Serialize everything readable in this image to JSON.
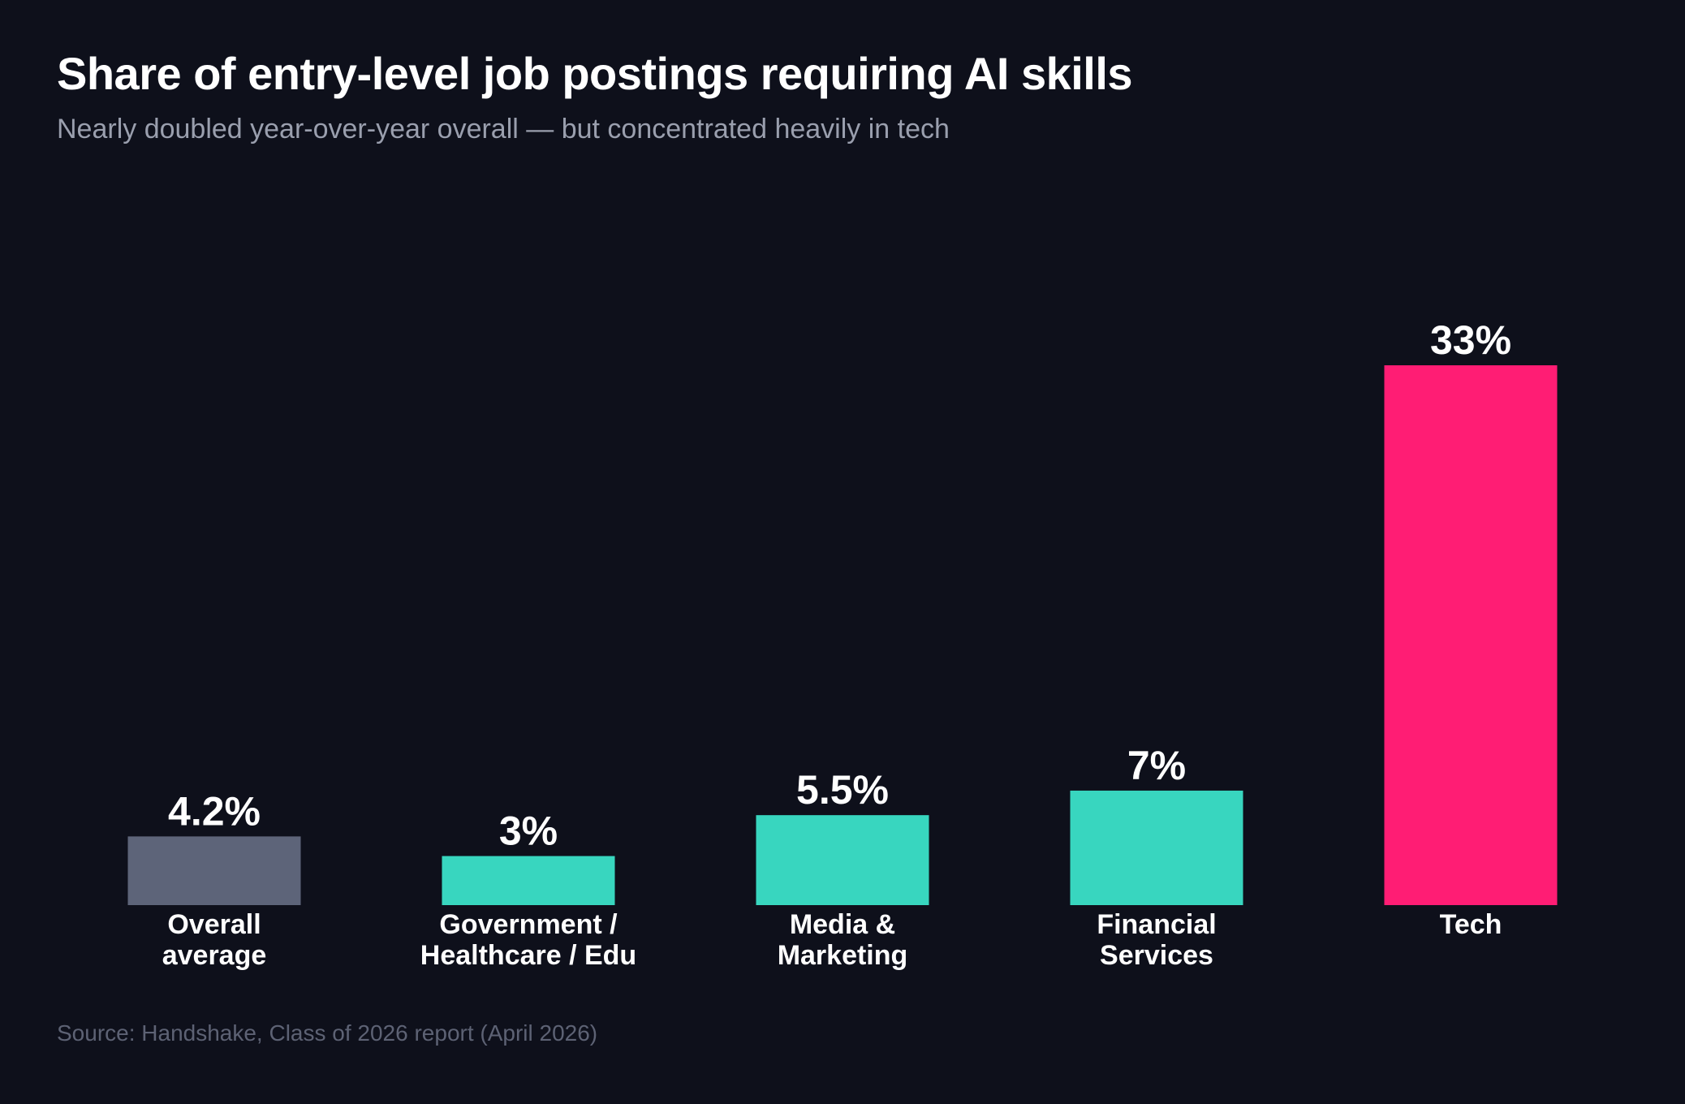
{
  "chart_data": {
    "type": "bar",
    "title": "Share of entry-level job postings requiring AI skills",
    "subtitle": "Nearly doubled year-over-year overall — but concentrated heavily in tech",
    "categories": [
      [
        "Overall",
        "average"
      ],
      [
        "Government /",
        "Healthcare / Edu"
      ],
      [
        "Media &",
        "Marketing"
      ],
      [
        "Financial",
        "Services"
      ],
      [
        "Tech"
      ]
    ],
    "values": [
      4.2,
      3,
      5.5,
      7,
      33
    ],
    "value_labels": [
      "4.2%",
      "3%",
      "5.5%",
      "7%",
      "33%"
    ],
    "unit": "%",
    "colors": [
      "#5d6479",
      "#38d6bf",
      "#38d6bf",
      "#38d6bf",
      "#ff1d74"
    ],
    "ylim": [
      0,
      33
    ],
    "grid": false,
    "legend": "none",
    "source": "Source: Handshake, Class of 2026 report (April 2026)"
  }
}
